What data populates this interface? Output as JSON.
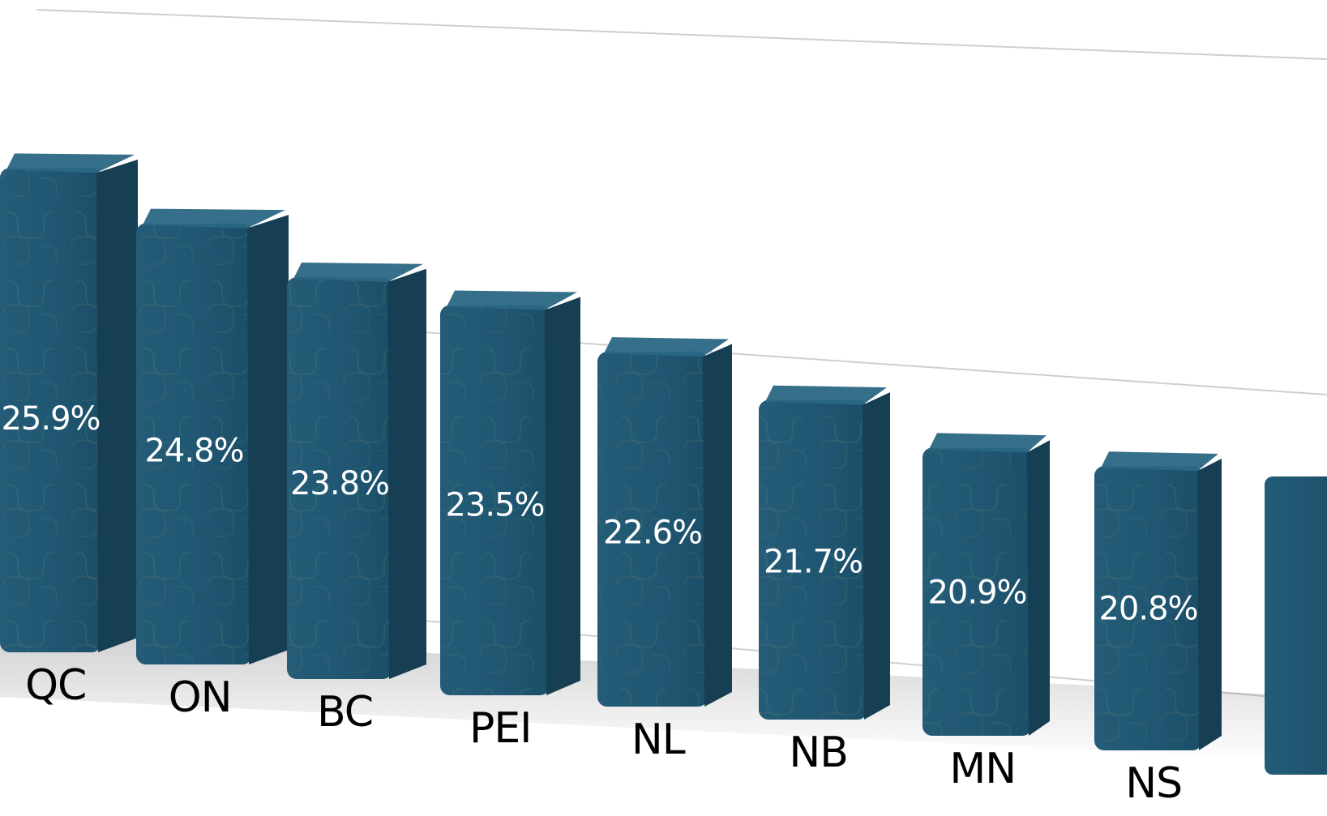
{
  "chart_data": {
    "type": "bar",
    "categories": [
      "QC",
      "ON",
      "BC",
      "PEI",
      "NL",
      "NB",
      "MN",
      "NS"
    ],
    "values": [
      25.9,
      24.8,
      23.8,
      23.5,
      22.6,
      21.7,
      20.9,
      20.8
    ],
    "data_labels": [
      "25.9%",
      "24.8%",
      "23.8%",
      "23.5%",
      "22.6%",
      "21.7%",
      "20.9%",
      "20.8%"
    ],
    "title": "",
    "xlabel": "",
    "ylabel": "",
    "grid": true,
    "legend": "none",
    "colors": {
      "bar_front": "#1f5570",
      "bar_side": "#173f53",
      "bar_top": "#2b6784",
      "pattern_a": "#4d8478",
      "pattern_b": "#6a7460",
      "grid": "#cfcfcf",
      "label": "#000000",
      "value_text": "#ffffff"
    }
  }
}
